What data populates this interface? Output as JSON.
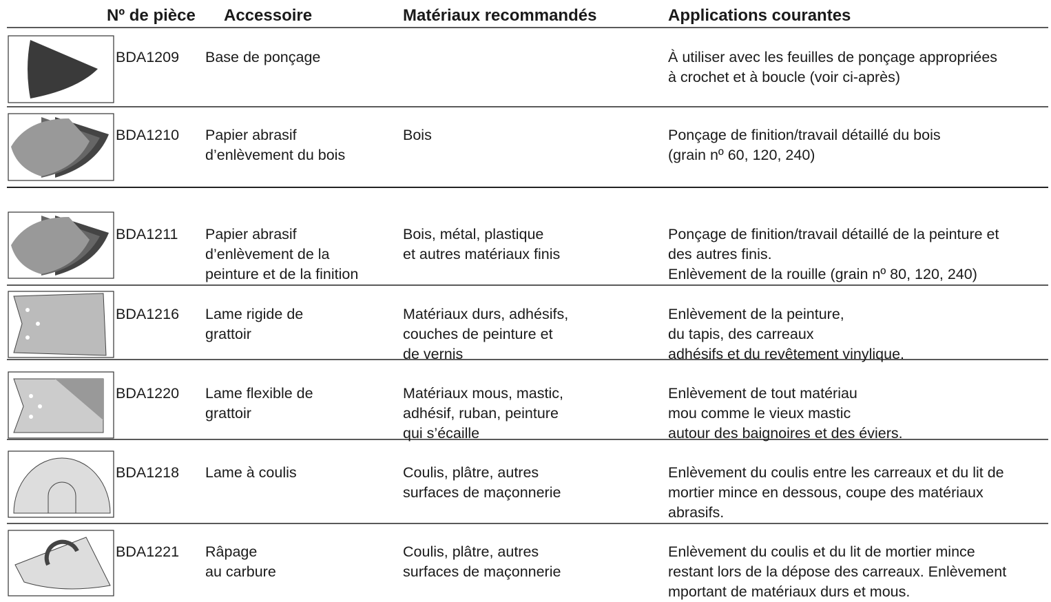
{
  "header": [
    "Nº de pièce",
    "Accessoire",
    "Matériaux recommandés",
    "Applications courantes"
  ],
  "rows": [
    {
      "part": "BDA1209",
      "accessory": [
        "Base de ponçage"
      ],
      "materials": [],
      "applications": [
        "À utiliser avec les feuilles de ponçage appropriées",
        "à crochet et à boucle (voir ci-après)"
      ]
    },
    {
      "part": "BDA1210",
      "accessory": [
        "Papier abrasif",
        "d’enlèvement du bois"
      ],
      "materials": [
        "Bois"
      ],
      "applications": [
        "Ponçage de finition/travail détaillé du bois",
        "(grain nº 60, 120, 240)"
      ]
    },
    {
      "part": "BDA1211",
      "accessory": [
        "Papier abrasif",
        "d’enlèvement de la",
        "peinture et de la finition"
      ],
      "materials": [
        "Bois, métal, plastique",
        "et autres matériaux finis"
      ],
      "applications": [
        "Ponçage de finition/travail  détaillé de la peinture et",
        "des autres finis.",
        "Enlèvement de la rouille (grain nº 80, 120, 240)"
      ]
    },
    {
      "part": "BDA1216",
      "accessory": [
        "Lame rigide de",
        "grattoir"
      ],
      "materials": [
        "Matériaux durs, adhésifs,",
        "couches de peinture et",
        "de vernis"
      ],
      "applications": [
        "Enlèvement de la peinture,",
        "du tapis, des carreaux",
        "adhésifs et du revêtement vinylique."
      ]
    },
    {
      "part": "BDA1220",
      "accessory": [
        "Lame flexible de",
        "grattoir"
      ],
      "materials": [
        "Matériaux mous, mastic,",
        "adhésif, ruban, peinture",
        "qui s’écaille"
      ],
      "applications": [
        "Enlèvement de tout matériau",
        "mou comme le vieux mastic",
        "autour des baignoires et des éviers."
      ]
    },
    {
      "part": "BDA1218",
      "accessory": [
        "Lame à coulis"
      ],
      "materials": [
        "Coulis, plâtre, autres",
        "surfaces de maçonnerie"
      ],
      "applications": [
        "Enlèvement du coulis entre les carreaux et du lit de",
        "mortier mince en dessous, coupe des matériaux",
        "abrasifs."
      ]
    },
    {
      "part": "BDA1221",
      "accessory": [
        "Râpage",
        "au carbure"
      ],
      "materials": [
        "Coulis, plâtre, autres",
        "surfaces de maçonnerie"
      ],
      "applications": [
        "Enlèvement du coulis et du lit de mortier mince",
        "restant lors de la dépose des carreaux. Enlèvement",
        "mportant de matériaux durs et mous."
      ]
    }
  ]
}
